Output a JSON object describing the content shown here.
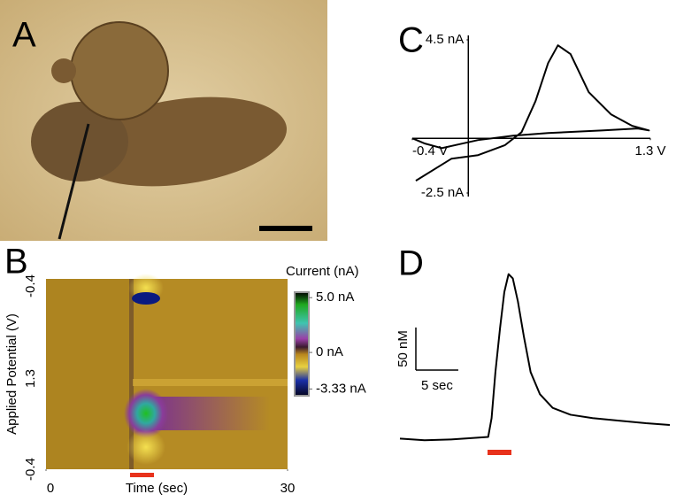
{
  "panel_a": {
    "label": "A"
  },
  "chart_data": [
    {
      "type": "heatmap",
      "label": "B",
      "ylabel": "Applied Potential (V)",
      "ytick_labels": [
        "-0.4",
        "1.3",
        "-0.4"
      ],
      "xlabel": "Time (sec)",
      "xlim": [
        0,
        30
      ],
      "xticks": [
        0,
        30
      ],
      "colorbar": {
        "title": "Current (nA)",
        "lim": [
          -3.95,
          5.5
        ],
        "ticks": [
          {
            "value": 5.0,
            "label": "5.0 nA"
          },
          {
            "value": 0,
            "label": "0 nA"
          },
          {
            "value": -3.33,
            "label": "-3.33 nA"
          }
        ]
      }
    },
    {
      "type": "line",
      "label": "C",
      "color": "#000000",
      "xlim": [
        -0.4,
        1.3
      ],
      "ylim": [
        -2.5,
        4.5
      ],
      "xticks": [
        {
          "value": -0.4,
          "label": "-0.4 V"
        },
        {
          "value": 1.3,
          "label": "1.3 V"
        }
      ],
      "yticks": [
        {
          "value": 4.5,
          "label": "4.5 nA"
        },
        {
          "value": -2.5,
          "label": "-2.5 nA"
        }
      ],
      "x": [
        -0.375,
        -0.12,
        0.07,
        0.26,
        0.38,
        0.48,
        0.57,
        0.64,
        0.73,
        0.86,
        1.02,
        1.17,
        1.29,
        1.21,
        0.95,
        0.57,
        0.32,
        0.07,
        -0.19,
        -0.31,
        -0.4
      ],
      "values": [
        -1.94,
        -0.93,
        -0.77,
        -0.32,
        0.28,
        1.7,
        3.44,
        4.25,
        3.85,
        2.11,
        1.09,
        0.57,
        0.36,
        0.45,
        0.36,
        0.24,
        0.12,
        -0.08,
        -0.45,
        -0.24,
        0
      ]
    },
    {
      "type": "line",
      "label": "D",
      "color": "#000000",
      "xlim": [
        0,
        31.8
      ],
      "ylim": [
        -10,
        203
      ],
      "scalebar_y": {
        "value": 50,
        "label": "50 nM"
      },
      "scalebar_x": {
        "value": 5,
        "label": "5 sec"
      },
      "x": [
        0,
        2.9,
        6.0,
        9.1,
        10.4,
        10.8,
        11.25,
        11.8,
        12.3,
        12.8,
        13.3,
        13.9,
        14.6,
        15.4,
        16.5,
        18.0,
        20.1,
        22.7,
        25.8,
        29.0,
        31.8
      ],
      "values": [
        0,
        -2,
        -1,
        1,
        2,
        24,
        78,
        130,
        172,
        193,
        188,
        161,
        120,
        78,
        52,
        36,
        28,
        24,
        21,
        18,
        16
      ]
    }
  ]
}
